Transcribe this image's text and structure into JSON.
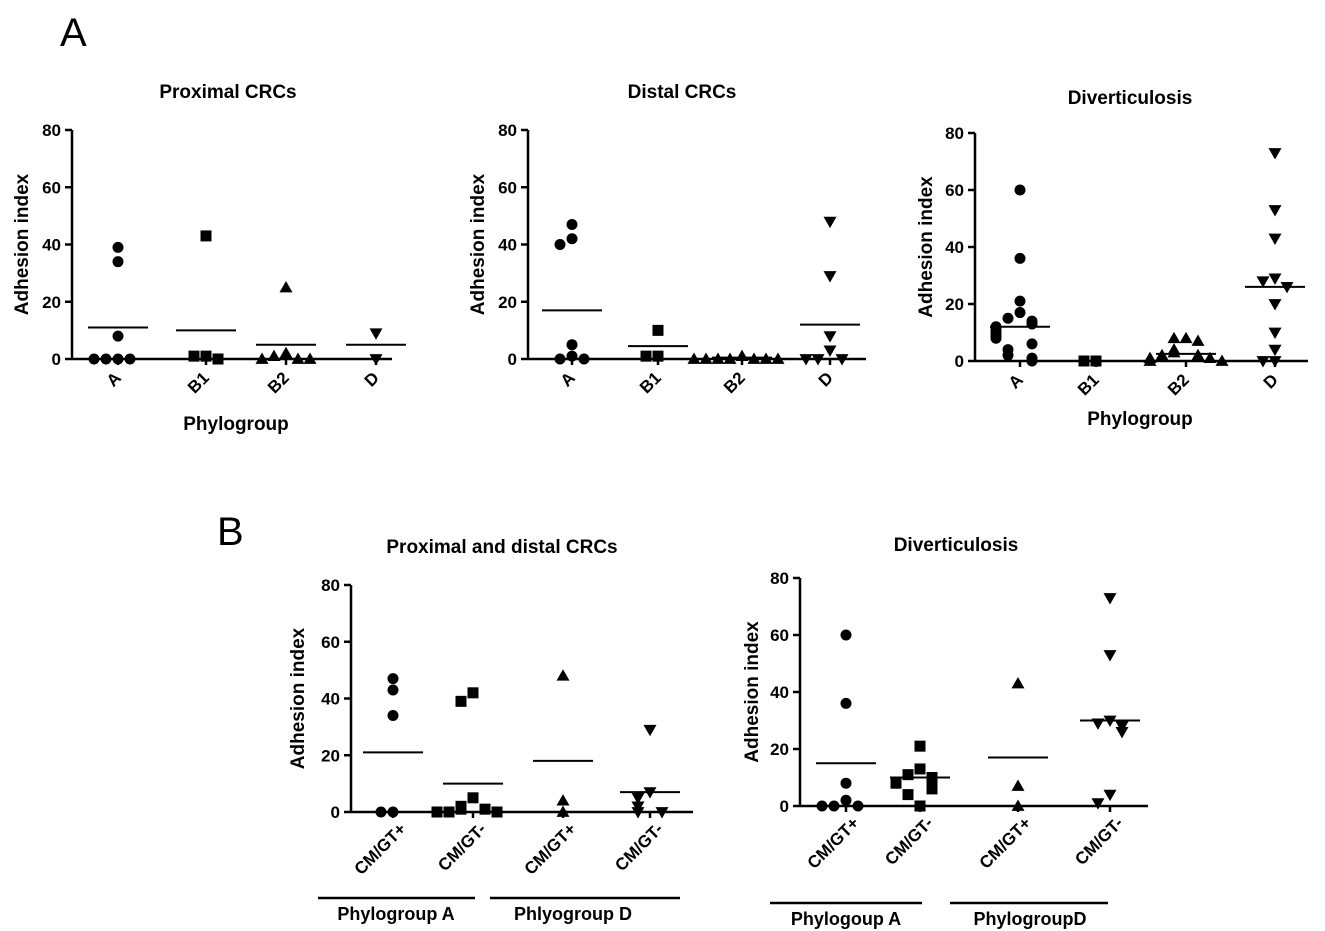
{
  "panels": {
    "a": "A",
    "b": "B"
  },
  "chart_data": [
    {
      "type": "scatter",
      "title": "Proximal CRCs",
      "xlabel": "Phylogroup",
      "ylabel": "Adhesion index",
      "ylim": [
        0,
        80
      ],
      "yticks": [
        "0",
        "20",
        "40",
        "60",
        "80"
      ],
      "categories": [
        "A",
        "B1",
        "B2",
        "D"
      ],
      "markers": [
        "circle",
        "square",
        "triangle-up",
        "triangle-down"
      ],
      "values": [
        [
          39,
          34,
          8,
          0,
          0,
          0,
          0
        ],
        [
          43,
          1,
          1,
          0
        ],
        [
          25,
          2,
          1,
          0,
          0,
          0
        ],
        [
          9,
          0
        ]
      ],
      "means": [
        11,
        10,
        5,
        5
      ]
    },
    {
      "type": "scatter",
      "title": "Distal CRCs",
      "xlabel": "",
      "ylabel": "Adhesion index",
      "ylim": [
        0,
        80
      ],
      "yticks": [
        "0",
        "20",
        "40",
        "60",
        "80"
      ],
      "categories": [
        "A",
        "B1",
        "B2",
        "D"
      ],
      "markers": [
        "circle",
        "square",
        "triangle-up",
        "triangle-down"
      ],
      "values": [
        [
          47,
          42,
          40,
          5,
          1,
          0,
          0
        ],
        [
          10,
          1,
          1
        ],
        [
          1,
          0,
          0,
          0,
          0,
          0,
          0,
          0
        ],
        [
          48,
          29,
          8,
          3,
          0,
          0,
          0
        ]
      ],
      "means": [
        17,
        4.5,
        0.5,
        12
      ]
    },
    {
      "type": "scatter",
      "title": "Diverticulosis",
      "xlabel": "Phylogroup",
      "ylabel": "Adhesion index",
      "ylim": [
        0,
        80
      ],
      "yticks": [
        "0",
        "20",
        "40",
        "60",
        "80"
      ],
      "categories": [
        "A",
        "B1",
        "B2",
        "D"
      ],
      "markers": [
        "circle",
        "square",
        "triangle-up",
        "triangle-down"
      ],
      "values": [
        [
          60,
          36,
          21,
          17,
          15,
          14,
          13,
          12,
          11,
          10,
          9,
          8,
          6,
          4,
          2,
          1,
          0
        ],
        [
          0,
          0
        ],
        [
          8,
          8,
          7,
          4,
          3,
          2,
          2,
          1,
          1,
          0,
          0
        ],
        [
          73,
          53,
          43,
          29,
          28,
          26,
          20,
          10,
          4,
          0,
          0
        ]
      ],
      "means": [
        12,
        0,
        2.5,
        26
      ]
    },
    {
      "type": "scatter",
      "title": "Proximal and distal CRCs",
      "xlabel": "",
      "ylabel": "Adhesion index",
      "ylim": [
        0,
        80
      ],
      "yticks": [
        "0",
        "20",
        "40",
        "60",
        "80"
      ],
      "categories": [
        "CM/GT+",
        "CM/GT-",
        "CM/GT+",
        "CM/GT-"
      ],
      "markers": [
        "circle",
        "square",
        "triangle-up",
        "triangle-down"
      ],
      "groups": [
        "Phylogroup A",
        "Phlyogroup D"
      ],
      "values": [
        [
          47,
          43,
          34,
          0,
          0
        ],
        [
          42,
          39,
          5,
          2,
          1,
          1,
          0,
          0,
          0
        ],
        [
          48,
          4,
          0
        ],
        [
          29,
          7,
          5,
          2,
          0,
          0
        ]
      ],
      "means": [
        21,
        10,
        18,
        7
      ]
    },
    {
      "type": "scatter",
      "title": "Diverticulosis",
      "xlabel": "",
      "ylabel": "Adhesion index",
      "ylim": [
        0,
        80
      ],
      "yticks": [
        "0",
        "20",
        "40",
        "60",
        "80"
      ],
      "categories": [
        "CM/GT+",
        "CM/GT-",
        "CM/GT+",
        "CM/GT-"
      ],
      "markers": [
        "circle",
        "square",
        "triangle-up",
        "triangle-down"
      ],
      "groups": [
        "Phylogoup A",
        "PhylogroupD"
      ],
      "values": [
        [
          60,
          36,
          8,
          2,
          0,
          0,
          0
        ],
        [
          21,
          13,
          11,
          10,
          9,
          8,
          6,
          4,
          0
        ],
        [
          43,
          7,
          0
        ],
        [
          73,
          53,
          30,
          29,
          28,
          26,
          4,
          1
        ]
      ],
      "means": [
        15,
        10,
        17,
        30
      ]
    }
  ]
}
